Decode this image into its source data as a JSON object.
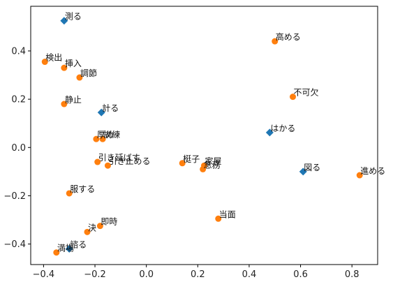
{
  "chart_data": {
    "type": "scatter",
    "xlim": [
      -0.45,
      0.9
    ],
    "ylim": [
      -0.485,
      0.585
    ],
    "x_ticks": [
      -0.4,
      -0.2,
      0.0,
      0.2,
      0.4,
      0.6,
      0.8
    ],
    "x_tick_labels": [
      "−0.4",
      "−0.2",
      "0.0",
      "0.2",
      "0.4",
      "0.6",
      "0.8"
    ],
    "y_ticks": [
      -0.4,
      -0.2,
      0.0,
      0.2,
      0.4
    ],
    "y_tick_labels": [
      "−0.4",
      "−0.2",
      "0.0",
      "0.2",
      "0.4"
    ],
    "grid": false,
    "colors": {
      "diamond": "#1f77b4",
      "circle": "#ff7f0e"
    },
    "series": [
      {
        "marker": "diamond",
        "points": [
          {
            "label": "測る",
            "x": -0.32,
            "y": 0.525
          },
          {
            "label": "計る",
            "x": -0.175,
            "y": 0.145
          },
          {
            "label": "はかる",
            "x": 0.48,
            "y": 0.062
          },
          {
            "label": "図る",
            "x": 0.61,
            "y": -0.1
          },
          {
            "label": "諮る",
            "x": -0.3,
            "y": -0.42
          }
        ]
      },
      {
        "marker": "circle",
        "points": [
          {
            "label": "高める",
            "x": 0.5,
            "y": 0.44
          },
          {
            "label": "検出",
            "x": -0.395,
            "y": 0.355
          },
          {
            "label": "挿入",
            "x": -0.32,
            "y": 0.33
          },
          {
            "label": "調節",
            "x": -0.26,
            "y": 0.29
          },
          {
            "label": "不可欠",
            "x": 0.57,
            "y": 0.21
          },
          {
            "label": "静止",
            "x": -0.32,
            "y": 0.18
          },
          {
            "label": "厚め",
            "x": -0.195,
            "y": 0.035
          },
          {
            "label": "訓練",
            "x": -0.17,
            "y": 0.035
          },
          {
            "label": "引き延ばす",
            "x": -0.19,
            "y": -0.06
          },
          {
            "label": "引き止める",
            "x": -0.15,
            "y": -0.075
          },
          {
            "label": "梃子",
            "x": 0.14,
            "y": -0.065
          },
          {
            "label": "家屋",
            "x": 0.225,
            "y": -0.075
          },
          {
            "label": "急務",
            "x": 0.22,
            "y": -0.09
          },
          {
            "label": "進める",
            "x": 0.83,
            "y": -0.115
          },
          {
            "label": "服する",
            "x": -0.3,
            "y": -0.19
          },
          {
            "label": "当面",
            "x": 0.28,
            "y": -0.295
          },
          {
            "label": "即時",
            "x": -0.18,
            "y": -0.325
          },
          {
            "label": "決",
            "x": -0.23,
            "y": -0.35
          },
          {
            "label": "満場",
            "x": -0.35,
            "y": -0.435
          }
        ]
      }
    ]
  }
}
